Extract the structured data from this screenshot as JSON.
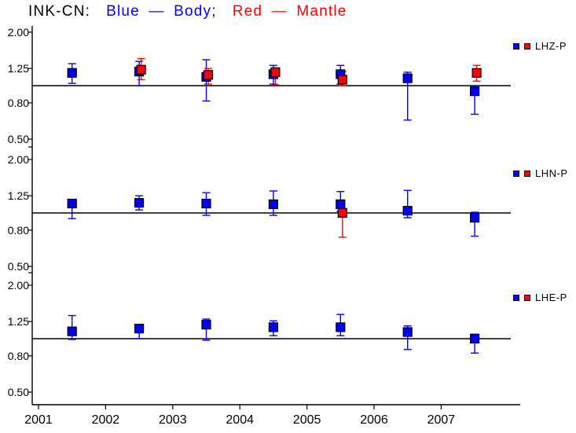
{
  "title": {
    "prefix": "INK-CN:",
    "blue_segment": "Blue — Body;",
    "red_segment": "Red — Mantle"
  },
  "colors": {
    "body": "#0000ff",
    "mantle": "#ff0000",
    "axis": "#000000"
  },
  "chart_data": {
    "type": "scatter",
    "title": "INK-CN:  Blue — Body;  Red — Mantle",
    "x_axis": {
      "label": "",
      "ticks": [
        2001,
        2002,
        2003,
        2004,
        2005,
        2006,
        2007
      ],
      "range": [
        2000.9,
        2008.05
      ]
    },
    "y_axis": {
      "label": "",
      "scale": "log",
      "tick_labels": [
        "2.00",
        "1.25",
        "0.80",
        "0.50"
      ],
      "tick_values": [
        2.0,
        1.25,
        0.8,
        0.5
      ],
      "reference_value": 1.0,
      "range": [
        0.45,
        2.35
      ]
    },
    "series_meta": {
      "blue": "Body",
      "red": "Mantle"
    },
    "panels": [
      {
        "legend": "LHZ-P",
        "points": [
          {
            "x": 2001.5,
            "body": {
              "value": 1.18,
              "lo": 1.03,
              "hi": 1.33
            }
          },
          {
            "x": 2002.5,
            "body": {
              "value": 1.2,
              "lo": 1.0,
              "hi": 1.37
            },
            "mantle": {
              "value": 1.23,
              "lo": 1.08,
              "hi": 1.42
            }
          },
          {
            "x": 2003.5,
            "body": {
              "value": 1.12,
              "lo": 0.82,
              "hi": 1.4
            },
            "mantle": {
              "value": 1.15,
              "lo": 1.02,
              "hi": 1.25
            }
          },
          {
            "x": 2004.5,
            "body": {
              "value": 1.16,
              "lo": 1.02,
              "hi": 1.3
            },
            "mantle": {
              "value": 1.19,
              "lo": 1.01,
              "hi": 1.26
            }
          },
          {
            "x": 2005.5,
            "body": {
              "value": 1.16,
              "lo": 1.02,
              "hi": 1.3
            },
            "mantle": {
              "value": 1.08,
              "lo": 1.0,
              "hi": 1.2
            }
          },
          {
            "x": 2006.5,
            "body": {
              "value": 1.1,
              "lo": 0.64,
              "hi": 1.19
            }
          },
          {
            "x": 2007.5,
            "body": {
              "value": 0.93,
              "lo": 0.69,
              "hi": 1.0
            },
            "mantle": {
              "value": 1.18,
              "lo": 1.06,
              "hi": 1.3
            }
          }
        ]
      },
      {
        "legend": "LHN-P",
        "points": [
          {
            "x": 2001.5,
            "body": {
              "value": 1.13,
              "lo": 0.93,
              "hi": 1.18
            }
          },
          {
            "x": 2002.5,
            "body": {
              "value": 1.14,
              "lo": 1.04,
              "hi": 1.25
            }
          },
          {
            "x": 2003.5,
            "body": {
              "value": 1.13,
              "lo": 0.97,
              "hi": 1.3
            }
          },
          {
            "x": 2004.5,
            "body": {
              "value": 1.12,
              "lo": 0.97,
              "hi": 1.33
            }
          },
          {
            "x": 2005.5,
            "body": {
              "value": 1.12,
              "lo": 1.02,
              "hi": 1.32
            },
            "mantle": {
              "value": 1.0,
              "lo": 0.73,
              "hi": 1.06
            }
          },
          {
            "x": 2006.5,
            "body": {
              "value": 1.03,
              "lo": 0.94,
              "hi": 1.34
            }
          },
          {
            "x": 2007.5,
            "body": {
              "value": 0.94,
              "lo": 0.74,
              "hi": 1.01
            }
          }
        ]
      },
      {
        "legend": "LHE-P",
        "points": [
          {
            "x": 2001.5,
            "body": {
              "value": 1.1,
              "lo": 0.99,
              "hi": 1.35
            }
          },
          {
            "x": 2002.5,
            "body": {
              "value": 1.14,
              "lo": 1.0,
              "hi": 1.2
            }
          },
          {
            "x": 2003.5,
            "body": {
              "value": 1.2,
              "lo": 0.98,
              "hi": 1.29
            }
          },
          {
            "x": 2004.5,
            "body": {
              "value": 1.16,
              "lo": 1.04,
              "hi": 1.26
            }
          },
          {
            "x": 2005.5,
            "body": {
              "value": 1.16,
              "lo": 1.04,
              "hi": 1.37
            }
          },
          {
            "x": 2006.5,
            "body": {
              "value": 1.09,
              "lo": 0.87,
              "hi": 1.18
            }
          },
          {
            "x": 2007.5,
            "body": {
              "value": 1.0,
              "lo": 0.83,
              "hi": 1.06
            }
          }
        ]
      }
    ]
  }
}
